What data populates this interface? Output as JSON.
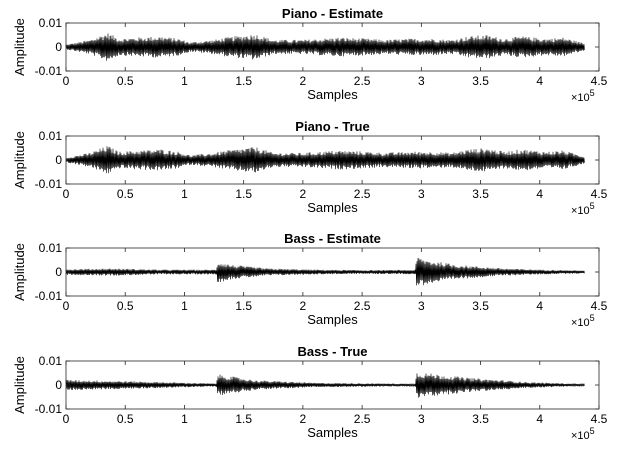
{
  "chart_data": [
    {
      "type": "line",
      "title": "Piano - Estimate",
      "xlabel": "Samples",
      "ylabel": "Amplitude",
      "xlim": [
        0,
        450000
      ],
      "ylim": [
        -0.01,
        0.01
      ],
      "x_ticks": [
        "0",
        "0.5",
        "1",
        "1.5",
        "2",
        "2.5",
        "3",
        "3.5",
        "4",
        "4.5"
      ],
      "y_ticks": [
        "-0.01",
        "0",
        "0.01"
      ],
      "x_multiplier": "×10",
      "x_exponent": "5",
      "x_end": 438000,
      "envelope": [
        {
          "x": 0,
          "a": 0.001
        },
        {
          "x": 20000,
          "a": 0.003
        },
        {
          "x": 35000,
          "a": 0.006
        },
        {
          "x": 45000,
          "a": 0.0035
        },
        {
          "x": 60000,
          "a": 0.004
        },
        {
          "x": 80000,
          "a": 0.0045
        },
        {
          "x": 95000,
          "a": 0.0035
        },
        {
          "x": 105000,
          "a": 0.002
        },
        {
          "x": 125000,
          "a": 0.003
        },
        {
          "x": 135000,
          "a": 0.004
        },
        {
          "x": 160000,
          "a": 0.0055
        },
        {
          "x": 175000,
          "a": 0.003
        },
        {
          "x": 200000,
          "a": 0.003
        },
        {
          "x": 230000,
          "a": 0.004
        },
        {
          "x": 255000,
          "a": 0.0035
        },
        {
          "x": 270000,
          "a": 0.003
        },
        {
          "x": 290000,
          "a": 0.0035
        },
        {
          "x": 310000,
          "a": 0.0035
        },
        {
          "x": 325000,
          "a": 0.003
        },
        {
          "x": 340000,
          "a": 0.0045
        },
        {
          "x": 355000,
          "a": 0.005
        },
        {
          "x": 370000,
          "a": 0.0035
        },
        {
          "x": 385000,
          "a": 0.0045
        },
        {
          "x": 405000,
          "a": 0.0035
        },
        {
          "x": 420000,
          "a": 0.004
        },
        {
          "x": 438000,
          "a": 0.0015
        }
      ]
    },
    {
      "type": "line",
      "title": "Piano - True",
      "xlabel": "Samples",
      "ylabel": "Amplitude",
      "xlim": [
        0,
        450000
      ],
      "ylim": [
        -0.01,
        0.01
      ],
      "x_ticks": [
        "0",
        "0.5",
        "1",
        "1.5",
        "2",
        "2.5",
        "3",
        "3.5",
        "4",
        "4.5"
      ],
      "y_ticks": [
        "-0.01",
        "0",
        "0.01"
      ],
      "x_multiplier": "×10",
      "x_exponent": "5",
      "x_end": 438000,
      "envelope": [
        {
          "x": 0,
          "a": 0.001
        },
        {
          "x": 20000,
          "a": 0.003
        },
        {
          "x": 35000,
          "a": 0.006
        },
        {
          "x": 45000,
          "a": 0.0035
        },
        {
          "x": 60000,
          "a": 0.004
        },
        {
          "x": 80000,
          "a": 0.0045
        },
        {
          "x": 95000,
          "a": 0.0035
        },
        {
          "x": 105000,
          "a": 0.002
        },
        {
          "x": 125000,
          "a": 0.003
        },
        {
          "x": 135000,
          "a": 0.004
        },
        {
          "x": 160000,
          "a": 0.0055
        },
        {
          "x": 175000,
          "a": 0.003
        },
        {
          "x": 200000,
          "a": 0.003
        },
        {
          "x": 230000,
          "a": 0.004
        },
        {
          "x": 255000,
          "a": 0.0035
        },
        {
          "x": 270000,
          "a": 0.003
        },
        {
          "x": 290000,
          "a": 0.0035
        },
        {
          "x": 310000,
          "a": 0.0035
        },
        {
          "x": 325000,
          "a": 0.003
        },
        {
          "x": 340000,
          "a": 0.0045
        },
        {
          "x": 355000,
          "a": 0.005
        },
        {
          "x": 370000,
          "a": 0.0035
        },
        {
          "x": 385000,
          "a": 0.0045
        },
        {
          "x": 405000,
          "a": 0.0035
        },
        {
          "x": 420000,
          "a": 0.004
        },
        {
          "x": 438000,
          "a": 0.0015
        }
      ]
    },
    {
      "type": "line",
      "title": "Bass - Estimate",
      "xlabel": "Samples",
      "ylabel": "Amplitude",
      "xlim": [
        0,
        450000
      ],
      "ylim": [
        -0.01,
        0.01
      ],
      "x_ticks": [
        "0",
        "0.5",
        "1",
        "1.5",
        "2",
        "2.5",
        "3",
        "3.5",
        "4",
        "4.5"
      ],
      "y_ticks": [
        "-0.01",
        "0",
        "0.01"
      ],
      "x_multiplier": "×10",
      "x_exponent": "5",
      "x_end": 438000,
      "envelope": [
        {
          "x": 0,
          "a": 0.0012
        },
        {
          "x": 40000,
          "a": 0.0015
        },
        {
          "x": 80000,
          "a": 0.001
        },
        {
          "x": 127000,
          "a": 0.001
        },
        {
          "x": 128000,
          "a": 0.0045
        },
        {
          "x": 140000,
          "a": 0.003
        },
        {
          "x": 170000,
          "a": 0.0015
        },
        {
          "x": 210000,
          "a": 0.001
        },
        {
          "x": 250000,
          "a": 0.0008
        },
        {
          "x": 295000,
          "a": 0.0009
        },
        {
          "x": 296000,
          "a": 0.0065
        },
        {
          "x": 305000,
          "a": 0.005
        },
        {
          "x": 330000,
          "a": 0.003
        },
        {
          "x": 370000,
          "a": 0.0015
        },
        {
          "x": 400000,
          "a": 0.001
        },
        {
          "x": 438000,
          "a": 0.0006
        }
      ]
    },
    {
      "type": "line",
      "title": "Bass - True",
      "xlabel": "Samples",
      "ylabel": "Amplitude",
      "xlim": [
        0,
        450000
      ],
      "ylim": [
        -0.01,
        0.01
      ],
      "x_ticks": [
        "0",
        "0.5",
        "1",
        "1.5",
        "2",
        "2.5",
        "3",
        "3.5",
        "4",
        "4.5"
      ],
      "y_ticks": [
        "-0.01",
        "0",
        "0.01"
      ],
      "x_multiplier": "×10",
      "x_exponent": "5",
      "x_end": 438000,
      "envelope": [
        {
          "x": 0,
          "a": 0.0022
        },
        {
          "x": 60000,
          "a": 0.0015
        },
        {
          "x": 127000,
          "a": 0.0006
        },
        {
          "x": 128000,
          "a": 0.0045
        },
        {
          "x": 160000,
          "a": 0.002
        },
        {
          "x": 210000,
          "a": 0.0009
        },
        {
          "x": 295000,
          "a": 0.0005
        },
        {
          "x": 296000,
          "a": 0.0055
        },
        {
          "x": 340000,
          "a": 0.003
        },
        {
          "x": 390000,
          "a": 0.0012
        },
        {
          "x": 438000,
          "a": 0.0004
        }
      ]
    }
  ]
}
